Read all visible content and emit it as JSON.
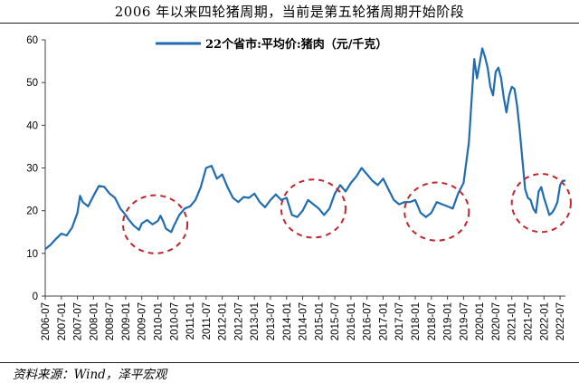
{
  "header": {
    "title": "2006 年以来四轮猪周期，当前是第五轮猪周期开始阶段"
  },
  "footer": {
    "source": "资料来源：Wind，泽平宏观"
  },
  "colors": {
    "line": "#1f6cb0",
    "circle": "#c0262d",
    "axis": "#404040"
  },
  "chart_data": {
    "type": "line",
    "title": "2006 年以来四轮猪周期，当前是第五轮猪周期开始阶段",
    "xlabel": "",
    "ylabel": "",
    "ylim": [
      0,
      60
    ],
    "yticks": [
      0,
      10,
      20,
      30,
      40,
      50,
      60
    ],
    "xlim": [
      "2006-07",
      "2022-09"
    ],
    "xtick_labels": [
      "2006-07",
      "2007-01",
      "2007-07",
      "2008-01",
      "2008-07",
      "2009-01",
      "2009-07",
      "2010-01",
      "2010-07",
      "2011-01",
      "2011-07",
      "2012-01",
      "2012-07",
      "2013-01",
      "2013-07",
      "2014-01",
      "2014-07",
      "2015-01",
      "2015-07",
      "2016-01",
      "2016-07",
      "2017-01",
      "2017-07",
      "2018-01",
      "2018-07",
      "2019-01",
      "2019-07",
      "2020-01",
      "2020-07",
      "2021-01",
      "2021-07",
      "2022-01",
      "2022-07"
    ],
    "legend": {
      "position": "top-center"
    },
    "grid": false,
    "series": [
      {
        "name": "22个省市:平均价:猪肉（元/千克）",
        "points": [
          [
            "2006-07",
            11.0
          ],
          [
            "2006-09",
            12.0
          ],
          [
            "2006-11",
            13.4
          ],
          [
            "2007-01",
            14.6
          ],
          [
            "2007-03",
            14.2
          ],
          [
            "2007-05",
            16.0
          ],
          [
            "2007-07",
            19.5
          ],
          [
            "2007-08",
            23.5
          ],
          [
            "2007-09",
            22.0
          ],
          [
            "2007-11",
            21.0
          ],
          [
            "2008-01",
            23.5
          ],
          [
            "2008-03",
            25.8
          ],
          [
            "2008-05",
            25.6
          ],
          [
            "2008-07",
            24.0
          ],
          [
            "2008-09",
            23.0
          ],
          [
            "2008-11",
            20.5
          ],
          [
            "2009-01",
            19.0
          ],
          [
            "2009-02",
            18.0
          ],
          [
            "2009-04",
            16.5
          ],
          [
            "2009-06",
            15.5
          ],
          [
            "2009-07",
            17.0
          ],
          [
            "2009-09",
            17.8
          ],
          [
            "2009-11",
            16.8
          ],
          [
            "2010-01",
            17.6
          ],
          [
            "2010-02",
            18.8
          ],
          [
            "2010-03",
            17.5
          ],
          [
            "2010-04",
            15.8
          ],
          [
            "2010-06",
            15.0
          ],
          [
            "2010-07",
            16.5
          ],
          [
            "2010-09",
            19.0
          ],
          [
            "2010-11",
            20.5
          ],
          [
            "2011-01",
            21.0
          ],
          [
            "2011-03",
            22.5
          ],
          [
            "2011-05",
            25.5
          ],
          [
            "2011-07",
            30.0
          ],
          [
            "2011-09",
            30.5
          ],
          [
            "2011-11",
            27.5
          ],
          [
            "2012-01",
            28.5
          ],
          [
            "2012-03",
            25.5
          ],
          [
            "2012-05",
            23.0
          ],
          [
            "2012-07",
            22.0
          ],
          [
            "2012-09",
            23.2
          ],
          [
            "2012-11",
            23.0
          ],
          [
            "2013-01",
            24.0
          ],
          [
            "2013-03",
            22.0
          ],
          [
            "2013-05",
            20.8
          ],
          [
            "2013-07",
            22.5
          ],
          [
            "2013-09",
            23.8
          ],
          [
            "2013-11",
            22.5
          ],
          [
            "2014-01",
            23.0
          ],
          [
            "2014-03",
            19.0
          ],
          [
            "2014-05",
            18.5
          ],
          [
            "2014-07",
            20.0
          ],
          [
            "2014-09",
            22.5
          ],
          [
            "2014-11",
            21.5
          ],
          [
            "2015-01",
            20.5
          ],
          [
            "2015-03",
            19.0
          ],
          [
            "2015-05",
            20.5
          ],
          [
            "2015-07",
            24.0
          ],
          [
            "2015-09",
            26.0
          ],
          [
            "2015-11",
            24.5
          ],
          [
            "2016-01",
            26.5
          ],
          [
            "2016-03",
            28.0
          ],
          [
            "2016-05",
            30.0
          ],
          [
            "2016-07",
            28.5
          ],
          [
            "2016-09",
            27.0
          ],
          [
            "2016-11",
            26.0
          ],
          [
            "2017-01",
            27.5
          ],
          [
            "2017-03",
            25.0
          ],
          [
            "2017-05",
            22.5
          ],
          [
            "2017-07",
            21.5
          ],
          [
            "2017-09",
            22.0
          ],
          [
            "2017-11",
            22.0
          ],
          [
            "2018-01",
            22.5
          ],
          [
            "2018-03",
            19.5
          ],
          [
            "2018-05",
            18.5
          ],
          [
            "2018-07",
            19.5
          ],
          [
            "2018-09",
            22.0
          ],
          [
            "2018-11",
            21.5
          ],
          [
            "2019-01",
            21.0
          ],
          [
            "2019-03",
            20.5
          ],
          [
            "2019-05",
            24.0
          ],
          [
            "2019-07",
            26.5
          ],
          [
            "2019-09",
            36.0
          ],
          [
            "2019-10",
            46.0
          ],
          [
            "2019-11",
            55.5
          ],
          [
            "2019-12",
            51.0
          ],
          [
            "2020-01",
            54.5
          ],
          [
            "2020-02",
            58.0
          ],
          [
            "2020-03",
            56.0
          ],
          [
            "2020-04",
            53.5
          ],
          [
            "2020-05",
            49.0
          ],
          [
            "2020-06",
            47.0
          ],
          [
            "2020-07",
            52.5
          ],
          [
            "2020-08",
            53.5
          ],
          [
            "2020-09",
            51.0
          ],
          [
            "2020-10",
            46.5
          ],
          [
            "2020-11",
            43.0
          ],
          [
            "2020-12",
            47.0
          ],
          [
            "2021-01",
            49.0
          ],
          [
            "2021-02",
            48.5
          ],
          [
            "2021-03",
            44.5
          ],
          [
            "2021-04",
            38.5
          ],
          [
            "2021-05",
            31.5
          ],
          [
            "2021-06",
            25.0
          ],
          [
            "2021-07",
            23.0
          ],
          [
            "2021-08",
            22.5
          ],
          [
            "2021-09",
            20.5
          ],
          [
            "2021-10",
            19.5
          ],
          [
            "2021-11",
            24.5
          ],
          [
            "2021-12",
            25.5
          ],
          [
            "2022-01",
            23.0
          ],
          [
            "2022-02",
            21.0
          ],
          [
            "2022-03",
            19.0
          ],
          [
            "2022-04",
            19.5
          ],
          [
            "2022-05",
            20.5
          ],
          [
            "2022-06",
            22.0
          ],
          [
            "2022-07",
            26.0
          ],
          [
            "2022-08",
            27.0
          ],
          [
            "2022-09",
            27.0
          ]
        ]
      }
    ],
    "annotations": [
      {
        "type": "ellipse",
        "center": [
          "2009-12",
          16.8
        ],
        "x_halfwidth_months": 12,
        "y_halfheight": 6.8
      },
      {
        "type": "ellipse",
        "center": [
          "2014-11",
          20.5
        ],
        "x_halfwidth_months": 12,
        "y_halfheight": 6.8
      },
      {
        "type": "ellipse",
        "center": [
          "2018-09",
          19.8
        ],
        "x_halfwidth_months": 12,
        "y_halfheight": 6.8
      },
      {
        "type": "ellipse",
        "center": [
          "2021-12",
          21.8
        ],
        "x_halfwidth_months": 11,
        "y_halfheight": 6.8
      }
    ]
  }
}
